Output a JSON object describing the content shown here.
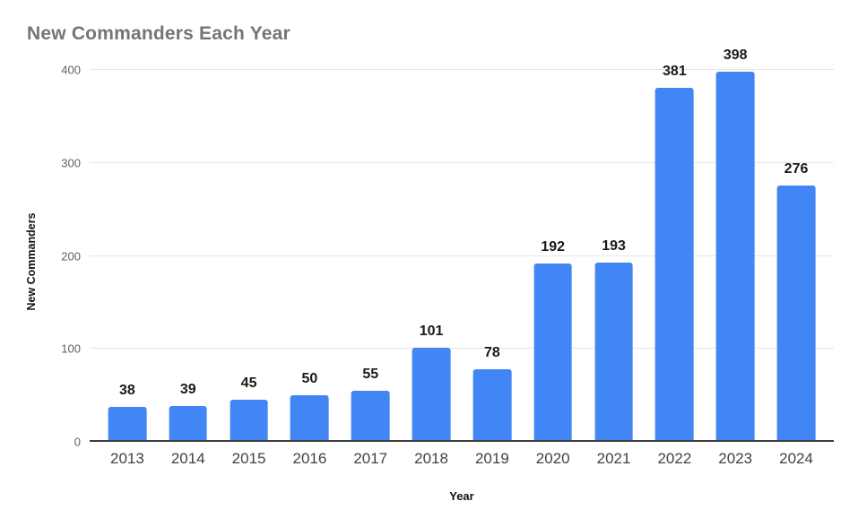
{
  "chart_data": {
    "type": "bar",
    "title": "New Commanders Each Year",
    "xlabel": "Year",
    "ylabel": "New Commanders",
    "categories": [
      "2013",
      "2014",
      "2015",
      "2016",
      "2017",
      "2018",
      "2019",
      "2020",
      "2021",
      "2022",
      "2023",
      "2024"
    ],
    "values": [
      38,
      39,
      45,
      50,
      55,
      101,
      78,
      192,
      193,
      381,
      398,
      276
    ],
    "data_labels": [
      38,
      39,
      45,
      50,
      55,
      101,
      78,
      192,
      193,
      381,
      398,
      276
    ],
    "ylim": [
      0,
      400
    ],
    "yticks": [
      0,
      100,
      200,
      300,
      400
    ],
    "bar_color": "#4285f4",
    "title_color": "#757575",
    "axis_label_color": "#111111",
    "tick_label_color": "#616161",
    "category_label_color": "#424242",
    "gridline_color": "#e6e6e6",
    "baseline_color": "#3d3d3d",
    "grid": true,
    "legend_position": "none"
  }
}
